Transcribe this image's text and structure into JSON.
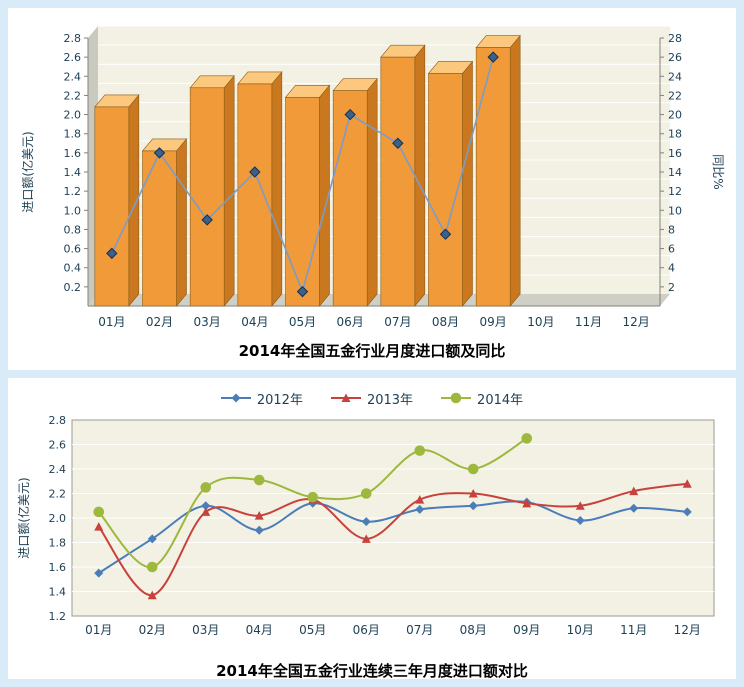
{
  "page": {
    "background": "#d8ebf6",
    "panel_background": "#ffffff"
  },
  "chart_data": [
    {
      "type": "bar+line",
      "title": "2014年全国五金行业月度进口额及同比",
      "categories": [
        "01月",
        "02月",
        "03月",
        "04月",
        "05月",
        "06月",
        "07月",
        "08月",
        "09月",
        "10月",
        "11月",
        "12月"
      ],
      "left_axis": {
        "label": "进口额(亿美元)",
        "min": 0,
        "max": 2.8,
        "tick_step": 0.2,
        "first_tick": 0.2
      },
      "right_axis": {
        "label": "同比%",
        "min": 0,
        "max": 28,
        "tick_step": 2,
        "first_tick": 2
      },
      "series": [
        {
          "name": "进口额",
          "type": "bar",
          "axis": "left",
          "colors": {
            "front": "#f09a3a",
            "top": "#fbc87e",
            "side": "#c9781f",
            "outline": "#8a5a14"
          },
          "values": [
            2.08,
            1.62,
            2.28,
            2.32,
            2.18,
            2.25,
            2.6,
            2.43,
            2.7,
            null,
            null,
            null
          ]
        },
        {
          "name": "同比",
          "type": "line",
          "axis": "right",
          "colors": {
            "line": "#7b9cc9",
            "marker": "#38618e",
            "marker_outline": "#1c2f49"
          },
          "values": [
            5.5,
            16,
            9,
            14,
            1.5,
            20,
            17,
            7.5,
            26,
            null,
            null,
            null
          ]
        }
      ],
      "plot_colors": {
        "background": "#f2f1e3",
        "grid": "#ffffff",
        "wall": "#c9c9bf",
        "floor": "#cfcfc5",
        "axis": "#82827a",
        "tick_text": "#1c3f54"
      },
      "grid": true,
      "legend_position": "none"
    },
    {
      "type": "line",
      "title": "2014年全国五金行业连续三年月度进口额对比",
      "categories": [
        "01月",
        "02月",
        "03月",
        "04月",
        "05月",
        "06月",
        "07月",
        "08月",
        "09月",
        "10月",
        "11月",
        "12月"
      ],
      "ylabel": "进口额(亿美元)",
      "ylim": [
        1.2,
        2.8
      ],
      "tick_step": 0.2,
      "series": [
        {
          "name": "2012年",
          "color": "#4b7db8",
          "marker": "diamond",
          "values": [
            1.55,
            1.83,
            2.1,
            1.9,
            2.12,
            1.97,
            2.07,
            2.1,
            2.13,
            1.98,
            2.08,
            2.05
          ]
        },
        {
          "name": "2013年",
          "color": "#c7423c",
          "marker": "triangle",
          "values": [
            1.93,
            1.37,
            2.05,
            2.02,
            2.15,
            1.83,
            2.15,
            2.2,
            2.12,
            2.1,
            2.22,
            2.28
          ]
        },
        {
          "name": "2014年",
          "color": "#9db83d",
          "marker": "circle",
          "values": [
            2.05,
            1.6,
            2.25,
            2.31,
            2.17,
            2.2,
            2.55,
            2.4,
            2.65,
            null,
            null,
            null
          ]
        }
      ],
      "plot_colors": {
        "background": "#f2f1e3",
        "grid": "#ffffff",
        "border": "#9a9a90",
        "tick_text": "#1c3f54"
      },
      "grid": true,
      "legend_position": "top"
    }
  ]
}
